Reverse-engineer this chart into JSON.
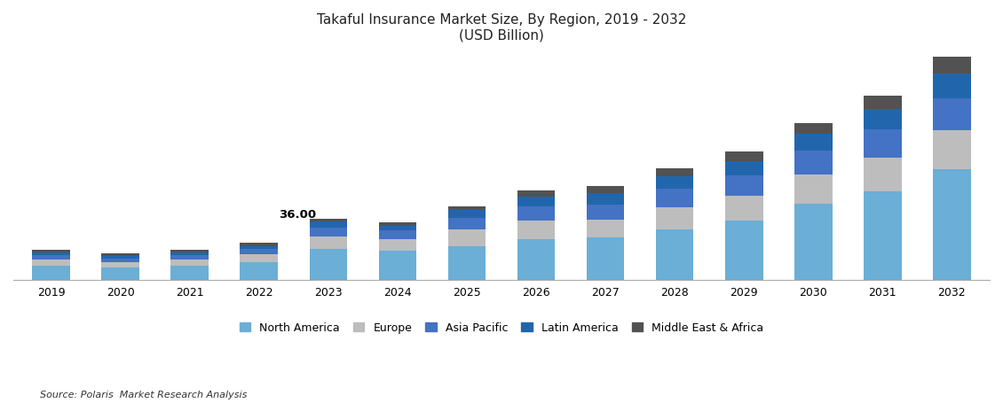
{
  "title_line1": "Takaful Insurance Market Size, By Region, 2019 - 2032",
  "title_line2": "(USD Billion)",
  "source": "Source: Polaris  Market Research Analysis",
  "years": [
    2019,
    2020,
    2021,
    2022,
    2023,
    2024,
    2025,
    2026,
    2027,
    2028,
    2029,
    2030,
    2031,
    2032
  ],
  "regions": [
    "North America",
    "Europe",
    "Asia Pacific",
    "Latin America",
    "Middle East & Africa"
  ],
  "colors": [
    "#6BAED6",
    "#BDBDBD",
    "#4472C4",
    "#2166AC",
    "#525252"
  ],
  "annotation_year": 2023,
  "annotation_text": "36.00",
  "data": {
    "North America": [
      8.5,
      7.5,
      8.5,
      10.5,
      18.0,
      17.0,
      20.0,
      24.0,
      25.0,
      30.0,
      35.0,
      45.0,
      52.0,
      65.0
    ],
    "Europe": [
      3.5,
      3.0,
      3.5,
      4.5,
      7.5,
      7.0,
      9.5,
      11.0,
      10.5,
      13.0,
      14.5,
      17.0,
      20.0,
      23.0
    ],
    "Asia Pacific": [
      2.5,
      2.0,
      2.5,
      3.0,
      5.5,
      5.0,
      7.0,
      8.5,
      9.0,
      10.5,
      12.0,
      14.0,
      16.5,
      19.0
    ],
    "Latin America": [
      1.5,
      1.5,
      1.5,
      2.0,
      3.5,
      3.0,
      4.5,
      5.5,
      6.5,
      7.5,
      8.5,
      10.0,
      12.0,
      14.5
    ],
    "Middle East & Africa": [
      1.5,
      1.5,
      1.5,
      2.0,
      1.5,
      2.0,
      2.5,
      3.5,
      4.5,
      4.5,
      5.5,
      6.5,
      8.0,
      10.0
    ]
  },
  "ylim_max": 135,
  "background_color": "#FFFFFF",
  "bar_width": 0.55
}
